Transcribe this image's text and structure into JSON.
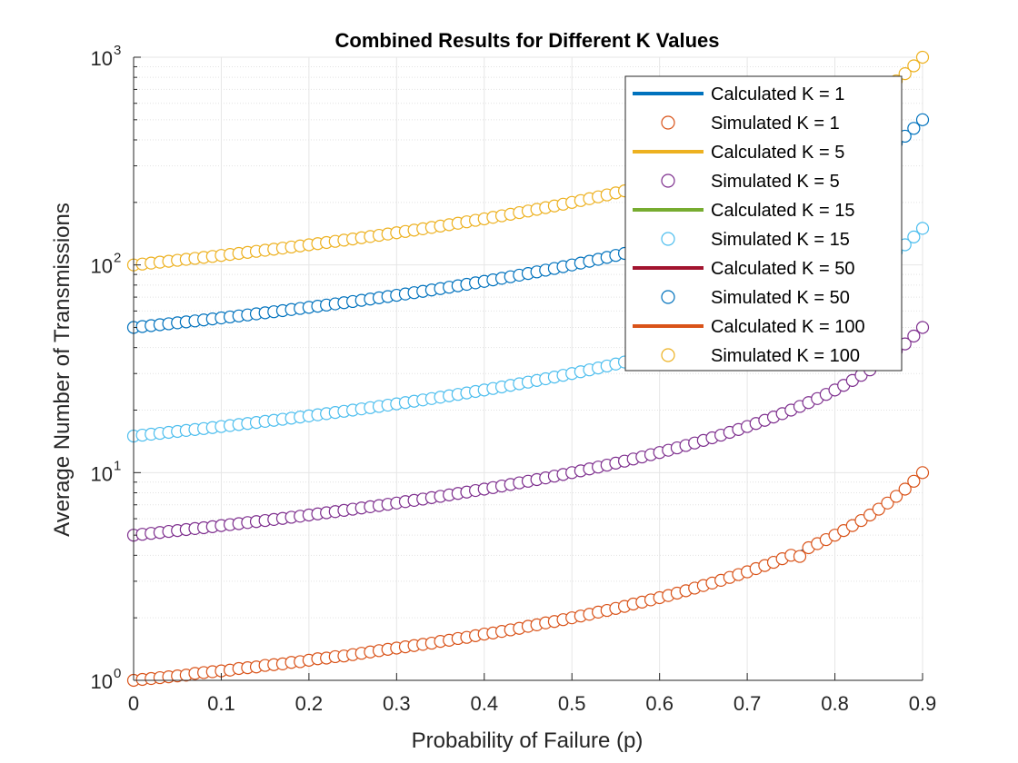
{
  "chart_data": {
    "type": "line",
    "title": "Combined Results for Different K Values",
    "xlabel": "Probability of Failure (p)",
    "ylabel": "Average Number of Transmissions",
    "xlim": [
      0,
      0.9
    ],
    "ylim": [
      1,
      1000
    ],
    "yscale": "log",
    "grid": true,
    "minor_grid": true,
    "legend_position": "top-right",
    "xticks": [
      {
        "value": 0,
        "label": "0"
      },
      {
        "value": 0.1,
        "label": "0.1"
      },
      {
        "value": 0.2,
        "label": "0.2"
      },
      {
        "value": 0.3,
        "label": "0.3"
      },
      {
        "value": 0.4,
        "label": "0.4"
      },
      {
        "value": 0.5,
        "label": "0.5"
      },
      {
        "value": 0.6,
        "label": "0.6"
      },
      {
        "value": 0.7,
        "label": "0.7"
      },
      {
        "value": 0.8,
        "label": "0.8"
      },
      {
        "value": 0.9,
        "label": "0.9"
      }
    ],
    "yticks": [
      {
        "value": 1,
        "base": "10",
        "exp": "0"
      },
      {
        "value": 10,
        "base": "10",
        "exp": "1"
      },
      {
        "value": 100,
        "base": "10",
        "exp": "2"
      },
      {
        "value": 1000,
        "base": "10",
        "exp": "3"
      }
    ],
    "p_values": [
      0,
      0.01,
      0.02,
      0.03,
      0.04,
      0.05,
      0.06,
      0.07,
      0.08,
      0.09,
      0.1,
      0.11,
      0.12,
      0.13,
      0.14,
      0.15,
      0.16,
      0.17,
      0.18,
      0.19,
      0.2,
      0.21,
      0.22,
      0.23,
      0.24,
      0.25,
      0.26,
      0.27,
      0.28,
      0.29,
      0.3,
      0.31,
      0.32,
      0.33,
      0.34,
      0.35,
      0.36,
      0.37,
      0.38,
      0.39,
      0.4,
      0.41,
      0.42,
      0.43,
      0.44,
      0.45,
      0.46,
      0.47,
      0.48,
      0.49,
      0.5,
      0.51,
      0.52,
      0.53,
      0.54,
      0.55,
      0.56,
      0.57,
      0.58,
      0.59,
      0.6,
      0.61,
      0.62,
      0.63,
      0.64,
      0.65,
      0.66,
      0.67,
      0.68,
      0.69,
      0.7,
      0.71,
      0.72,
      0.73,
      0.74,
      0.75,
      0.76,
      0.77,
      0.78,
      0.79,
      0.8,
      0.81,
      0.82,
      0.83,
      0.84,
      0.85,
      0.86,
      0.87,
      0.88,
      0.89,
      0.9
    ],
    "series": [
      {
        "name": "Calculated K = 1",
        "kind": "line",
        "color": "#0072BD",
        "values": [
          1.0,
          1.01,
          1.02,
          1.031,
          1.042,
          1.053,
          1.064,
          1.075,
          1.087,
          1.099,
          1.111,
          1.124,
          1.136,
          1.149,
          1.163,
          1.176,
          1.19,
          1.205,
          1.22,
          1.235,
          1.25,
          1.266,
          1.282,
          1.299,
          1.316,
          1.333,
          1.351,
          1.37,
          1.389,
          1.408,
          1.429,
          1.449,
          1.471,
          1.493,
          1.515,
          1.538,
          1.563,
          1.587,
          1.613,
          1.639,
          1.667,
          1.695,
          1.724,
          1.754,
          1.786,
          1.818,
          1.852,
          1.887,
          1.923,
          1.961,
          2.0,
          2.041,
          2.083,
          2.128,
          2.174,
          2.222,
          2.273,
          2.326,
          2.381,
          2.439,
          2.5,
          2.564,
          2.632,
          2.703,
          2.778,
          2.857,
          2.941,
          3.03,
          3.125,
          3.226,
          3.333,
          3.448,
          3.571,
          3.704,
          3.846,
          4.0,
          4.167,
          4.348,
          4.545,
          4.762,
          5.0,
          5.263,
          5.556,
          5.882,
          6.25,
          6.667,
          7.143,
          7.692,
          8.333,
          9.091,
          10.0
        ]
      },
      {
        "name": "Simulated K = 1",
        "kind": "markers",
        "color": "#D95319",
        "values": [
          1.0,
          1.01,
          1.02,
          1.03,
          1.04,
          1.05,
          1.06,
          1.08,
          1.09,
          1.1,
          1.11,
          1.12,
          1.14,
          1.15,
          1.16,
          1.18,
          1.19,
          1.2,
          1.22,
          1.23,
          1.25,
          1.27,
          1.28,
          1.3,
          1.31,
          1.33,
          1.35,
          1.37,
          1.39,
          1.41,
          1.43,
          1.45,
          1.47,
          1.49,
          1.51,
          1.54,
          1.56,
          1.59,
          1.61,
          1.64,
          1.67,
          1.69,
          1.72,
          1.75,
          1.78,
          1.82,
          1.85,
          1.89,
          1.92,
          1.96,
          2.0,
          2.04,
          2.08,
          2.13,
          2.17,
          2.22,
          2.27,
          2.33,
          2.38,
          2.44,
          2.5,
          2.56,
          2.63,
          2.7,
          2.78,
          2.86,
          2.94,
          3.03,
          3.13,
          3.23,
          3.33,
          3.45,
          3.57,
          3.7,
          3.85,
          4.0,
          3.95,
          4.35,
          4.55,
          4.76,
          5.0,
          5.26,
          5.56,
          5.88,
          6.25,
          6.67,
          7.14,
          7.69,
          8.33,
          9.09,
          10.0
        ]
      },
      {
        "name": "Calculated K = 5",
        "kind": "line",
        "color": "#EDB120",
        "values": [
          5.0,
          5.051,
          5.102,
          5.155,
          5.208,
          5.263,
          5.319,
          5.376,
          5.435,
          5.495,
          5.556,
          5.618,
          5.682,
          5.747,
          5.814,
          5.882,
          5.952,
          6.024,
          6.098,
          6.173,
          6.25,
          6.329,
          6.41,
          6.494,
          6.579,
          6.667,
          6.757,
          6.849,
          6.944,
          7.042,
          7.143,
          7.246,
          7.353,
          7.463,
          7.576,
          7.692,
          7.813,
          7.937,
          8.065,
          8.197,
          8.333,
          8.475,
          8.621,
          8.772,
          8.929,
          9.091,
          9.259,
          9.434,
          9.615,
          9.804,
          10.0,
          10.204,
          10.417,
          10.638,
          10.87,
          11.111,
          11.364,
          11.628,
          11.905,
          12.195,
          12.5,
          12.821,
          13.158,
          13.514,
          13.889,
          14.286,
          14.706,
          15.152,
          15.625,
          16.129,
          16.667,
          17.241,
          17.857,
          18.519,
          19.231,
          20.0,
          20.833,
          21.739,
          22.727,
          23.81,
          25.0,
          26.316,
          27.778,
          29.412,
          31.25,
          33.333,
          35.714,
          38.462,
          41.667,
          45.455,
          50.0
        ]
      },
      {
        "name": "Simulated K = 5",
        "kind": "markers",
        "color": "#7E2F8E",
        "values": [
          5.0,
          5.05,
          5.1,
          5.15,
          5.21,
          5.26,
          5.32,
          5.38,
          5.43,
          5.49,
          5.56,
          5.62,
          5.68,
          5.75,
          5.81,
          5.88,
          5.95,
          6.02,
          6.1,
          6.17,
          6.25,
          6.33,
          6.41,
          6.49,
          6.58,
          6.67,
          6.76,
          6.85,
          6.94,
          7.04,
          7.14,
          7.25,
          7.35,
          7.46,
          7.58,
          7.69,
          7.81,
          7.94,
          8.06,
          8.2,
          8.33,
          8.47,
          8.62,
          8.77,
          8.93,
          9.09,
          9.26,
          9.43,
          9.62,
          9.8,
          10.0,
          10.2,
          10.42,
          10.64,
          10.87,
          11.11,
          11.36,
          11.63,
          11.9,
          12.2,
          12.5,
          12.82,
          13.16,
          13.51,
          13.89,
          14.29,
          14.71,
          15.15,
          15.63,
          16.13,
          16.67,
          17.24,
          17.86,
          18.52,
          19.23,
          20.0,
          20.83,
          21.74,
          22.73,
          23.81,
          25.0,
          26.32,
          27.78,
          29.41,
          31.25,
          33.33,
          35.71,
          38.46,
          41.67,
          45.45,
          50.0
        ]
      },
      {
        "name": "Calculated K = 15",
        "kind": "line",
        "color": "#77AC30",
        "values": [
          15.0,
          15.152,
          15.306,
          15.464,
          15.625,
          15.789,
          15.957,
          16.129,
          16.304,
          16.484,
          16.667,
          16.854,
          17.045,
          17.241,
          17.442,
          17.647,
          17.857,
          18.072,
          18.293,
          18.519,
          18.75,
          18.987,
          19.231,
          19.481,
          19.737,
          20.0,
          20.27,
          20.548,
          20.833,
          21.127,
          21.429,
          21.739,
          22.059,
          22.388,
          22.727,
          23.077,
          23.438,
          23.81,
          24.194,
          24.59,
          25.0,
          25.424,
          25.862,
          26.316,
          26.786,
          27.273,
          27.778,
          28.302,
          28.846,
          29.412,
          30.0,
          30.612,
          31.25,
          31.915,
          32.609,
          33.333,
          34.091,
          34.884,
          35.714,
          36.585,
          37.5,
          38.462,
          39.474,
          40.541,
          41.667,
          42.857,
          44.118,
          45.455,
          46.875,
          48.387,
          50.0,
          51.724,
          53.571,
          55.556,
          57.692,
          60.0,
          62.5,
          65.217,
          68.182,
          71.429,
          75.0,
          78.947,
          83.333,
          88.235,
          93.75,
          100.0,
          107.143,
          115.385,
          125.0,
          136.364,
          150.0
        ]
      },
      {
        "name": "Simulated K = 15",
        "kind": "markers",
        "color": "#4DBEEE",
        "values": [
          15.0,
          15.15,
          15.31,
          15.46,
          15.63,
          15.79,
          15.96,
          16.13,
          16.3,
          16.48,
          16.67,
          16.85,
          17.05,
          17.24,
          17.44,
          17.65,
          17.86,
          18.07,
          18.29,
          18.52,
          18.75,
          18.99,
          19.23,
          19.48,
          19.74,
          20.0,
          20.27,
          20.55,
          20.83,
          21.13,
          21.43,
          21.74,
          22.06,
          22.39,
          22.73,
          23.08,
          23.44,
          23.81,
          24.19,
          24.59,
          25.0,
          25.42,
          25.86,
          26.32,
          26.79,
          27.27,
          27.78,
          28.3,
          28.85,
          29.41,
          30.0,
          30.61,
          31.25,
          31.91,
          32.61,
          33.33,
          34.09,
          34.88,
          35.71,
          36.59,
          37.5,
          38.46,
          39.47,
          40.54,
          41.67,
          42.86,
          44.12,
          45.45,
          46.88,
          48.39,
          50.0,
          51.72,
          53.57,
          55.56,
          57.69,
          60.0,
          62.5,
          65.22,
          68.18,
          71.43,
          75.0,
          78.95,
          83.33,
          88.24,
          93.75,
          100.0,
          107.14,
          115.38,
          125.0,
          136.36,
          150.0
        ]
      },
      {
        "name": "Calculated K = 50",
        "kind": "line",
        "color": "#A2142F",
        "values": [
          50.0,
          50.505,
          51.02,
          51.546,
          52.083,
          52.632,
          53.191,
          53.763,
          54.348,
          54.945,
          55.556,
          56.18,
          56.818,
          57.471,
          58.14,
          58.824,
          59.524,
          60.241,
          60.976,
          61.728,
          62.5,
          63.291,
          64.103,
          64.935,
          65.789,
          66.667,
          67.568,
          68.493,
          69.444,
          70.423,
          71.429,
          72.464,
          73.529,
          74.627,
          75.758,
          76.923,
          78.125,
          79.365,
          80.645,
          81.967,
          83.333,
          84.746,
          86.207,
          87.719,
          89.286,
          90.909,
          92.593,
          94.34,
          96.154,
          98.039,
          100.0,
          102.041,
          104.167,
          106.383,
          108.696,
          111.111,
          113.636,
          116.279,
          119.048,
          121.951,
          125.0,
          128.205,
          131.579,
          135.135,
          138.889,
          142.857,
          147.059,
          151.515,
          156.25,
          161.29,
          166.667,
          172.414,
          178.571,
          185.185,
          192.308,
          200.0,
          208.333,
          217.391,
          227.273,
          238.095,
          250.0,
          263.158,
          277.778,
          294.118,
          312.5,
          333.333,
          357.143,
          384.615,
          416.667,
          454.545,
          500.0
        ]
      },
      {
        "name": "Simulated K = 50",
        "kind": "markers",
        "color": "#0072BD",
        "values": [
          50.0,
          50.51,
          51.02,
          51.55,
          52.08,
          52.63,
          53.19,
          53.76,
          54.35,
          54.95,
          55.56,
          56.18,
          56.82,
          57.47,
          58.14,
          58.82,
          59.52,
          60.24,
          60.98,
          61.73,
          62.5,
          63.29,
          64.1,
          64.94,
          65.79,
          66.67,
          67.57,
          68.49,
          69.44,
          70.42,
          71.43,
          72.46,
          73.53,
          74.63,
          75.76,
          76.92,
          78.13,
          79.37,
          80.65,
          81.97,
          83.33,
          84.75,
          86.21,
          87.72,
          89.29,
          90.91,
          92.59,
          94.34,
          96.15,
          98.04,
          100.0,
          102.04,
          104.17,
          106.38,
          108.7,
          111.11,
          113.64,
          116.28,
          119.05,
          121.95,
          125.0,
          128.21,
          131.58,
          135.14,
          138.89,
          142.86,
          147.06,
          151.52,
          156.25,
          161.29,
          166.67,
          172.41,
          178.57,
          185.19,
          192.31,
          200.0,
          208.33,
          217.39,
          227.27,
          238.1,
          250.0,
          263.16,
          277.78,
          294.12,
          312.5,
          333.33,
          357.14,
          384.62,
          416.67,
          454.55,
          500.0
        ]
      },
      {
        "name": "Calculated K = 100",
        "kind": "line",
        "color": "#D95319",
        "values": [
          100.0,
          101.01,
          102.041,
          103.093,
          104.167,
          105.263,
          106.383,
          107.527,
          108.696,
          109.89,
          111.111,
          112.36,
          113.636,
          114.943,
          116.279,
          117.647,
          119.048,
          120.482,
          121.951,
          123.457,
          125.0,
          126.582,
          128.205,
          129.87,
          131.579,
          133.333,
          135.135,
          136.986,
          138.889,
          140.845,
          142.857,
          144.928,
          147.059,
          149.254,
          151.515,
          153.846,
          156.25,
          158.73,
          161.29,
          163.934,
          166.667,
          169.492,
          172.414,
          175.439,
          178.571,
          181.818,
          185.185,
          188.679,
          192.308,
          196.078,
          200.0,
          204.082,
          208.333,
          212.766,
          217.391,
          222.222,
          227.273,
          232.558,
          238.095,
          243.902,
          250.0,
          256.41,
          263.158,
          270.27,
          277.778,
          285.714,
          294.118,
          303.03,
          312.5,
          322.581,
          333.333,
          344.828,
          357.143,
          370.37,
          384.615,
          400.0,
          416.667,
          434.783,
          454.545,
          476.19,
          500.0,
          526.316,
          555.556,
          588.235,
          625.0,
          666.667,
          714.286,
          769.231,
          833.333,
          909.091,
          1000.0
        ]
      },
      {
        "name": "Simulated K = 100",
        "kind": "markers",
        "color": "#EDB120",
        "values": [
          100.0,
          101.01,
          102.04,
          103.09,
          104.17,
          105.26,
          106.38,
          107.53,
          108.7,
          109.89,
          111.11,
          112.36,
          113.64,
          114.94,
          116.28,
          117.65,
          119.05,
          120.48,
          121.95,
          123.46,
          125.0,
          126.58,
          128.21,
          129.87,
          131.58,
          133.33,
          135.14,
          136.99,
          138.89,
          140.85,
          142.86,
          144.93,
          147.06,
          149.25,
          151.52,
          153.85,
          156.25,
          158.73,
          161.29,
          163.93,
          166.67,
          169.49,
          172.41,
          175.44,
          178.57,
          181.82,
          185.19,
          188.68,
          192.31,
          196.08,
          200.0,
          204.08,
          208.33,
          212.77,
          217.39,
          222.22,
          227.27,
          232.56,
          238.1,
          243.9,
          250.0,
          256.41,
          263.16,
          270.27,
          277.78,
          285.71,
          294.12,
          303.03,
          312.5,
          322.58,
          333.33,
          344.83,
          357.14,
          370.37,
          384.62,
          400.0,
          416.67,
          434.78,
          454.55,
          476.19,
          500.0,
          526.32,
          555.56,
          588.24,
          625.0,
          666.67,
          714.29,
          769.23,
          833.33,
          909.09,
          1000.0
        ]
      }
    ]
  }
}
